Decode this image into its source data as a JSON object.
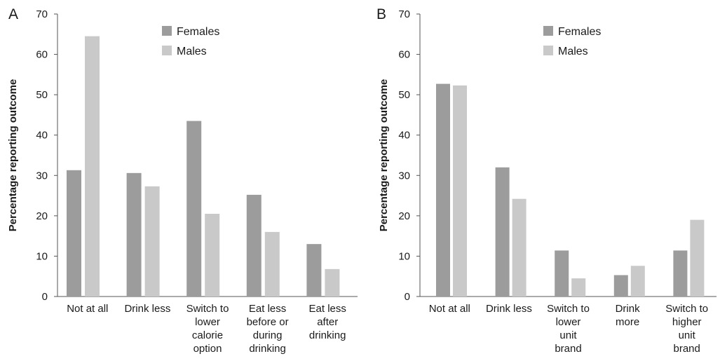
{
  "chart_data": [
    {
      "panel": "A",
      "type": "bar",
      "ylabel": "Percentage reporting outcome",
      "ylim": [
        0,
        70
      ],
      "yticks": [
        "0",
        "10",
        "20",
        "30",
        "40",
        "50",
        "60",
        "70"
      ],
      "grid": false,
      "legend_position": "top-center",
      "categories": [
        [
          "Not at all"
        ],
        [
          "Drink less"
        ],
        [
          "Switch to",
          "lower",
          "calorie",
          "option"
        ],
        [
          "Eat less",
          "before or",
          "during",
          "drinking"
        ],
        [
          "Eat less",
          "after",
          "drinking"
        ]
      ],
      "series": [
        {
          "name": "Females",
          "color": "#9c9c9c",
          "values": [
            31.3,
            30.6,
            43.5,
            25.2,
            13.0
          ]
        },
        {
          "name": "Males",
          "color": "#c9c9c9",
          "values": [
            64.5,
            27.3,
            20.5,
            16.0,
            6.8
          ]
        }
      ]
    },
    {
      "panel": "B",
      "type": "bar",
      "ylabel": "Percentage reporting outcome",
      "ylim": [
        0,
        70
      ],
      "yticks": [
        "0",
        "10",
        "20",
        "30",
        "40",
        "50",
        "60",
        "70"
      ],
      "grid": false,
      "legend_position": "top-center",
      "categories": [
        [
          "Not at all"
        ],
        [
          "Drink less"
        ],
        [
          "Switch to",
          "lower",
          "unit",
          "brand"
        ],
        [
          "Drink",
          "more"
        ],
        [
          "Switch to",
          "higher",
          "unit",
          "brand"
        ]
      ],
      "series": [
        {
          "name": "Females",
          "color": "#9c9c9c",
          "values": [
            52.7,
            32.0,
            11.4,
            5.3,
            11.4
          ]
        },
        {
          "name": "Males",
          "color": "#c9c9c9",
          "values": [
            52.3,
            24.2,
            4.5,
            7.6,
            19.0
          ]
        }
      ]
    }
  ]
}
